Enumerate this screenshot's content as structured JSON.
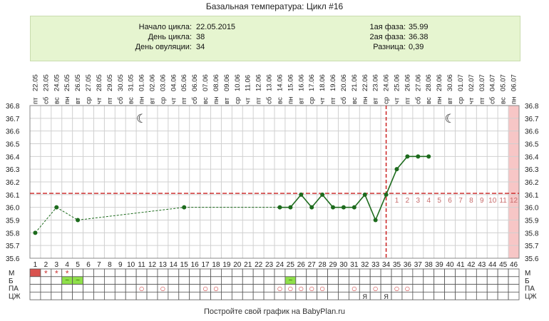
{
  "header": {
    "title": "Базальная температура: Цикл #16"
  },
  "info": {
    "cycle_start_label": "Начало цикла:",
    "cycle_start_value": "22.05.2015",
    "cycle_day_label": "День цикла:",
    "cycle_day_value": "38",
    "ovulation_day_label": "День овуляции:",
    "ovulation_day_value": "34",
    "phase1_label": "1ая фаза:",
    "phase1_value": "35.99",
    "phase2_label": "2ая фаза:",
    "phase2_value": "36.38",
    "diff_label": "Разница:",
    "diff_value": "0,39"
  },
  "footer": {
    "text": "Постройте свой график на BabyPlan.ru"
  },
  "colors": {
    "line_solid": "#1d6b1d",
    "line_dashed": "#1d6b1d",
    "point": "#1d6b1d",
    "coverline": "#cc2222",
    "ovulation_line": "#cc2222",
    "future_label": "#c76b6b",
    "last_day_band": "#f7c6c6",
    "grid": "#d0d0d0",
    "menses": "#d9534f",
    "mucus": "#8fe04a",
    "marker": "#cc3333"
  },
  "chart_data": {
    "type": "line",
    "title": "Базальная температура: Цикл #16",
    "xlabel": "",
    "ylabel": "",
    "x_range": [
      1,
      46
    ],
    "ylim": [
      35.6,
      36.8
    ],
    "y_ticks": [
      "35.6",
      "35.7",
      "35.8",
      "35.9",
      "36.0",
      "36.1",
      "36.2",
      "36.3",
      "36.4",
      "36.5",
      "36.6",
      "36.7",
      "36.8"
    ],
    "coverline": 36.11,
    "ovulation_day": 34,
    "cycle_days": [
      "1",
      "2",
      "3",
      "4",
      "5",
      "6",
      "7",
      "8",
      "9",
      "10",
      "11",
      "12",
      "13",
      "14",
      "15",
      "16",
      "17",
      "18",
      "19",
      "20",
      "21",
      "22",
      "23",
      "24",
      "25",
      "26",
      "27",
      "28",
      "29",
      "30",
      "31",
      "32",
      "33",
      "34",
      "35",
      "36",
      "37",
      "38",
      "39",
      "40",
      "41",
      "42",
      "43",
      "44",
      "45",
      "46"
    ],
    "dates": [
      "22.05",
      "23.05",
      "24.05",
      "25.05",
      "26.05",
      "27.05",
      "28.05",
      "29.05",
      "30.05",
      "31.05",
      "01.06",
      "02.06",
      "03.06",
      "04.06",
      "05.06",
      "06.06",
      "07.06",
      "08.06",
      "09.06",
      "10.06",
      "11.06",
      "12.06",
      "13.06",
      "14.06",
      "15.06",
      "16.06",
      "17.06",
      "18.06",
      "19.06",
      "20.06",
      "21.06",
      "22.06",
      "23.06",
      "24.06",
      "25.06",
      "26.06",
      "27.06",
      "28.06",
      "29.06",
      "30.06",
      "01.07",
      "02.07",
      "03.07",
      "04.07",
      "05.07",
      "06.07"
    ],
    "weekdays": [
      "пт",
      "сб",
      "вс",
      "пн",
      "вт",
      "ср",
      "чт",
      "пт",
      "сб",
      "вс",
      "пн",
      "вт",
      "ср",
      "чт",
      "пт",
      "сб",
      "вс",
      "пн",
      "вт",
      "ср",
      "чт",
      "пт",
      "сб",
      "вс",
      "пн",
      "вт",
      "ср",
      "чт",
      "пт",
      "сб",
      "вс",
      "пн",
      "вт",
      "ср",
      "чт",
      "пт",
      "сб",
      "вс",
      "пн",
      "вт",
      "ср",
      "чт",
      "пт",
      "сб",
      "вс",
      "пн"
    ],
    "points": [
      {
        "day": 1,
        "temp": 35.8
      },
      {
        "day": 3,
        "temp": 36.0
      },
      {
        "day": 5,
        "temp": 35.9
      },
      {
        "day": 15,
        "temp": 36.0
      },
      {
        "day": 24,
        "temp": 36.0
      },
      {
        "day": 25,
        "temp": 36.0
      },
      {
        "day": 26,
        "temp": 36.1
      },
      {
        "day": 27,
        "temp": 36.0
      },
      {
        "day": 28,
        "temp": 36.1
      },
      {
        "day": 29,
        "temp": 36.0
      },
      {
        "day": 30,
        "temp": 36.0
      },
      {
        "day": 31,
        "temp": 36.0
      },
      {
        "day": 32,
        "temp": 36.1
      },
      {
        "day": 33,
        "temp": 35.9
      },
      {
        "day": 34,
        "temp": 36.1
      },
      {
        "day": 35,
        "temp": 36.3
      },
      {
        "day": 36,
        "temp": 36.4
      },
      {
        "day": 37,
        "temp": 36.4
      },
      {
        "day": 38,
        "temp": 36.4
      }
    ],
    "dashed_segments": [
      [
        1,
        3
      ],
      [
        3,
        5
      ],
      [
        5,
        15
      ],
      [
        15,
        24
      ]
    ],
    "moon_days": [
      11,
      40
    ],
    "moon_symbol": "☾",
    "future_day_labels": [
      "1",
      "2",
      "3",
      "4",
      "5",
      "6",
      "7",
      "8",
      "9",
      "10",
      "11",
      "12"
    ],
    "future_start_day": 35,
    "last_day_highlight": 46,
    "table_rows": [
      {
        "label": "М",
        "menses_days": [
          1
        ],
        "star_days": [
          2,
          3,
          4
        ],
        "star_symbol": "*"
      },
      {
        "label": "Б",
        "mucus_days": [
          4,
          5,
          25
        ],
        "mucus_symbol": "~"
      },
      {
        "label": "ПА",
        "circle_days": [
          11,
          13,
          17,
          18,
          24,
          25,
          26,
          27,
          28,
          31,
          33,
          35,
          36
        ],
        "circle_symbol": "○"
      },
      {
        "label": "ЦЖ",
        "ya_days": [
          32,
          34
        ],
        "ya_symbol": "Я"
      }
    ]
  }
}
